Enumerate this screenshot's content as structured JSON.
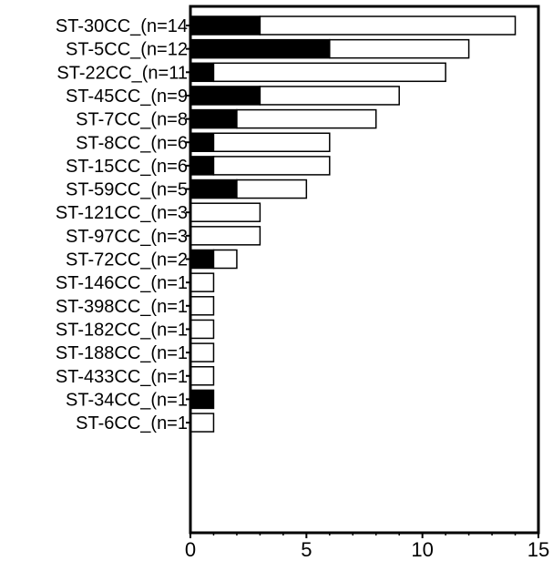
{
  "chart_data": {
    "type": "bar",
    "orientation": "horizontal",
    "stacked": true,
    "categories": [
      "ST-30CC_(n=14",
      "ST-5CC_(n=12",
      "ST-22CC_(n=11",
      "ST-45CC_(n=9",
      "ST-7CC_(n=8",
      "ST-8CC_(n=6",
      "ST-15CC_(n=6",
      "ST-59CC_(n=5",
      "ST-121CC_(n=3",
      "ST-97CC_(n=3",
      "ST-72CC_(n=2",
      "ST-146CC_(n=1",
      "ST-398CC_(n=1",
      "ST-182CC_(n=1",
      "ST-188CC_(n=1",
      "ST-433CC_(n=1",
      "ST-34CC_(n=1",
      "ST-6CC_(n=1"
    ],
    "series": [
      {
        "color": "#000000",
        "values": [
          3,
          6,
          1,
          3,
          2,
          1,
          1,
          2,
          0,
          0,
          1,
          0,
          0,
          0,
          0,
          0,
          1,
          0
        ]
      },
      {
        "color": "#ffffff",
        "values": [
          11,
          6,
          10,
          6,
          6,
          5,
          5,
          3,
          3,
          3,
          1,
          1,
          1,
          1,
          1,
          1,
          0,
          1
        ]
      }
    ],
    "xlim": [
      0,
      15
    ],
    "xticks": [
      0,
      5,
      10,
      15
    ],
    "title": "",
    "xlabel": "",
    "ylabel": "",
    "grid": false,
    "legend": "none"
  }
}
